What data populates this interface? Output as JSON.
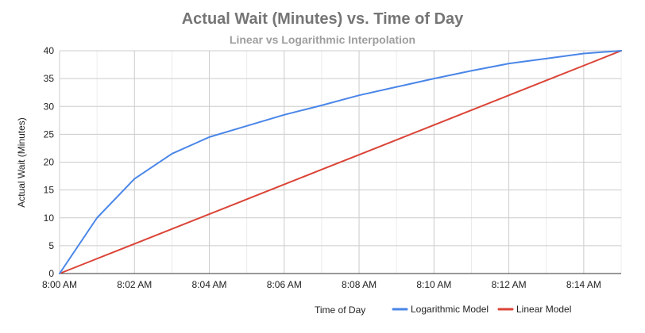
{
  "chart_data": {
    "type": "line",
    "title": "Actual Wait (Minutes) vs. Time of Day",
    "subtitle": "Linear vs Logarithmic Interpolation",
    "xlabel": "Time of Day",
    "ylabel": "Actual Wait (Minutes)",
    "x": [
      "8:00 AM",
      "8:01 AM",
      "8:02 AM",
      "8:03 AM",
      "8:04 AM",
      "8:05 AM",
      "8:06 AM",
      "8:07 AM",
      "8:08 AM",
      "8:09 AM",
      "8:10 AM",
      "8:11 AM",
      "8:12 AM",
      "8:13 AM",
      "8:14 AM",
      "8:15 AM"
    ],
    "x_tick_labels": [
      "8:00 AM",
      "8:02 AM",
      "8:04 AM",
      "8:06 AM",
      "8:08 AM",
      "8:10 AM",
      "8:12 AM",
      "8:14 AM"
    ],
    "ylim": [
      0,
      40
    ],
    "y_ticks": [
      0,
      5,
      10,
      15,
      20,
      25,
      30,
      35,
      40
    ],
    "grid": true,
    "legend_position": "bottom",
    "series": [
      {
        "name": "Logarithmic Model",
        "color": "#4a86e8",
        "values": [
          0,
          10,
          17,
          21.5,
          24.5,
          26.5,
          28.5,
          30.2,
          32,
          33.5,
          35,
          36.4,
          37.7,
          38.6,
          39.5,
          40
        ]
      },
      {
        "name": "Linear Model",
        "color": "#db4437",
        "values": [
          0,
          2.67,
          5.33,
          8,
          10.67,
          13.33,
          16,
          18.67,
          21.33,
          24,
          26.67,
          29.33,
          32,
          34.67,
          37.33,
          40
        ]
      }
    ]
  }
}
